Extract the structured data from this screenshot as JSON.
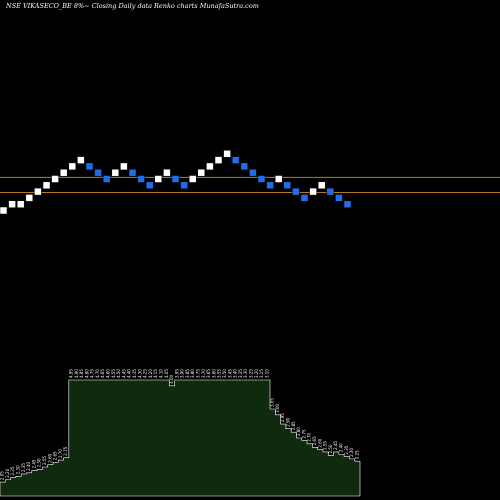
{
  "header": {
    "title": "NSE VIKASECO_BE 8%~  Closing Daily data  Renko  charts MunafaSutra.com"
  },
  "colors": {
    "background": "#000000",
    "up_brick": "#ffffff",
    "down_brick": "#1e6ee8",
    "reference_line": "#b87a1e",
    "volume_fill": "#0f2a0f",
    "volume_stroke": "#ffffff"
  },
  "chart_data": {
    "type": "renko",
    "bricks": [
      {
        "dir": "up",
        "level": 0
      },
      {
        "dir": "up",
        "level": 1
      },
      {
        "dir": "up",
        "level": 1
      },
      {
        "dir": "up",
        "level": 2
      },
      {
        "dir": "up",
        "level": 3
      },
      {
        "dir": "up",
        "level": 4
      },
      {
        "dir": "up",
        "level": 5
      },
      {
        "dir": "up",
        "level": 6
      },
      {
        "dir": "up",
        "level": 7
      },
      {
        "dir": "up",
        "level": 8
      },
      {
        "dir": "down",
        "level": 7
      },
      {
        "dir": "down",
        "level": 6
      },
      {
        "dir": "down",
        "level": 5
      },
      {
        "dir": "up",
        "level": 6
      },
      {
        "dir": "up",
        "level": 7
      },
      {
        "dir": "down",
        "level": 6
      },
      {
        "dir": "down",
        "level": 5
      },
      {
        "dir": "down",
        "level": 4
      },
      {
        "dir": "up",
        "level": 5
      },
      {
        "dir": "up",
        "level": 6
      },
      {
        "dir": "down",
        "level": 5
      },
      {
        "dir": "down",
        "level": 4
      },
      {
        "dir": "up",
        "level": 5
      },
      {
        "dir": "up",
        "level": 6
      },
      {
        "dir": "up",
        "level": 7
      },
      {
        "dir": "up",
        "level": 8
      },
      {
        "dir": "up",
        "level": 9
      },
      {
        "dir": "down",
        "level": 8
      },
      {
        "dir": "down",
        "level": 7
      },
      {
        "dir": "down",
        "level": 6
      },
      {
        "dir": "down",
        "level": 5
      },
      {
        "dir": "down",
        "level": 4
      },
      {
        "dir": "up",
        "level": 5
      },
      {
        "dir": "down",
        "level": 4
      },
      {
        "dir": "down",
        "level": 3
      },
      {
        "dir": "down",
        "level": 2
      },
      {
        "dir": "up",
        "level": 3
      },
      {
        "dir": "up",
        "level": 4
      },
      {
        "dir": "down",
        "level": 3
      },
      {
        "dir": "down",
        "level": 2
      },
      {
        "dir": "down",
        "level": 1
      }
    ],
    "reference_levels": [
      4.7,
      2.3
    ],
    "volume": {
      "labels": [
        "2.05",
        "2.20",
        "2.25",
        "2.30",
        "2.35",
        "2.40",
        "2.45",
        "2.50",
        "2.55",
        "2.60",
        "2.65",
        "2.70",
        "2.75",
        "4.95",
        "4.90",
        "4.85",
        "4.80",
        "4.75",
        "4.70",
        "4.65",
        "4.60",
        "4.55",
        "4.50",
        "4.45",
        "4.40",
        "4.35",
        "4.30",
        "4.25",
        "4.20",
        "4.15",
        "4.10",
        "4.05",
        "4.00",
        "3.95",
        "3.90",
        "3.85",
        "3.80",
        "3.75",
        "3.70",
        "3.65",
        "3.60",
        "3.55",
        "3.50",
        "3.45",
        "3.40",
        "3.35",
        "3.30",
        "3.25",
        "3.20",
        "3.15",
        "3.10",
        "3.05",
        "3.00",
        "2.95",
        "2.90",
        "2.85",
        "2.80",
        "2.75",
        "2.70",
        "2.65",
        "2.60",
        "2.55",
        "2.50",
        "2.45",
        "2.40",
        "2.35",
        "2.30",
        "2.25"
      ],
      "values": [
        12,
        14,
        16,
        17,
        19,
        20,
        22,
        23,
        25,
        27,
        29,
        31,
        33,
        100,
        100,
        100,
        100,
        100,
        100,
        100,
        100,
        100,
        100,
        100,
        100,
        100,
        100,
        100,
        100,
        100,
        100,
        100,
        95,
        100,
        100,
        100,
        100,
        100,
        100,
        100,
        100,
        100,
        100,
        100,
        100,
        100,
        100,
        100,
        100,
        100,
        100,
        75,
        70,
        62,
        58,
        55,
        50,
        48,
        45,
        42,
        40,
        38,
        35,
        38,
        36,
        34,
        32,
        30
      ]
    }
  }
}
